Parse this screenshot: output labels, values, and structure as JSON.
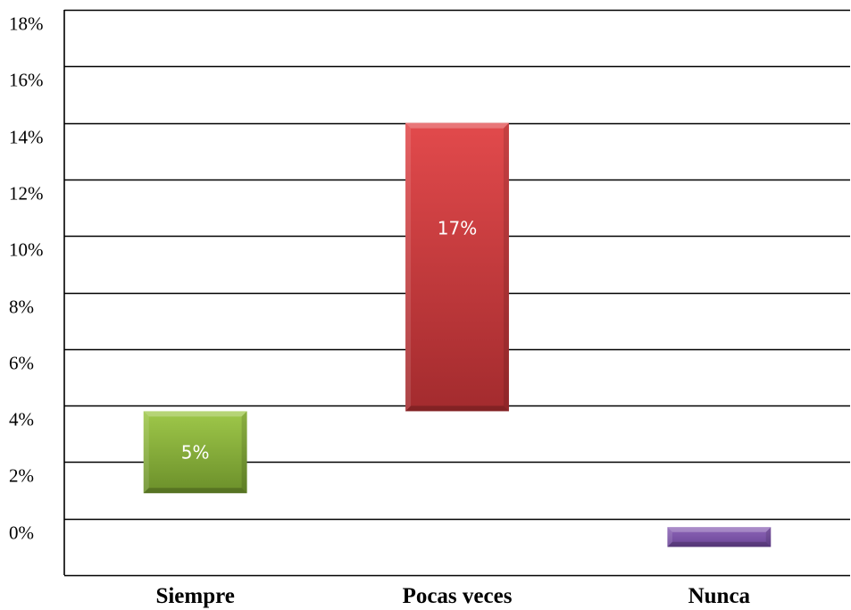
{
  "chart_data": {
    "type": "bar",
    "title": "",
    "xlabel": "",
    "ylabel": "",
    "y_ticks": [
      "0%",
      "2%",
      "4%",
      "6%",
      "8%",
      "10%",
      "12%",
      "14%",
      "16%",
      "18%"
    ],
    "ylim": [
      -2,
      18
    ],
    "grid": true,
    "legend": "none",
    "categories": [
      "Siempre",
      "Pocas veces",
      "Nunca"
    ],
    "bars": [
      {
        "category": "Siempre",
        "bottom": 0.9,
        "top": 3.8,
        "label": "5%",
        "color": "#7ea53a",
        "color_light": "#9fc84a",
        "color_dark": "#6b8f2a"
      },
      {
        "category": "Pocas veces",
        "bottom": 3.8,
        "top": 14.0,
        "label": "17%",
        "color": "#c0393b",
        "color_light": "#e24a4c",
        "color_dark": "#a32b2e"
      },
      {
        "category": "Nunca",
        "bottom": -1.0,
        "top": -0.3,
        "label": "",
        "color": "#7a52a6",
        "color_light": "#8e66b8",
        "color_dark": "#6a4496"
      }
    ]
  }
}
